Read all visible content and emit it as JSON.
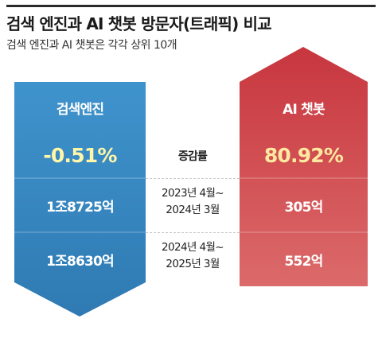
{
  "header": {
    "title": "검색 엔진과 AI 챗봇 방문자(트래픽) 비교",
    "subtitle": "검색 엔진과 AI 챗봇은 각각 상위 10개"
  },
  "chart_data": {
    "type": "table",
    "colors": {
      "search_engine": "#3d8fc9",
      "ai_chatbot": "#cf4f55",
      "rate_highlight": "#fff6a8"
    },
    "row_header": "증감률",
    "columns": [
      {
        "name": "검색엔진",
        "direction": "down",
        "rate": "-0.51%",
        "values": [
          "1조8725억",
          "1조8630억"
        ]
      },
      {
        "name": "AI 챗봇",
        "direction": "up",
        "rate": "80.92%",
        "values": [
          "305억",
          "552억"
        ]
      }
    ],
    "periods": [
      {
        "line1": "2023년 4월~",
        "line2": "2024년 3월"
      },
      {
        "line1": "2024년 4월~",
        "line2": "2025년 3월"
      }
    ]
  }
}
